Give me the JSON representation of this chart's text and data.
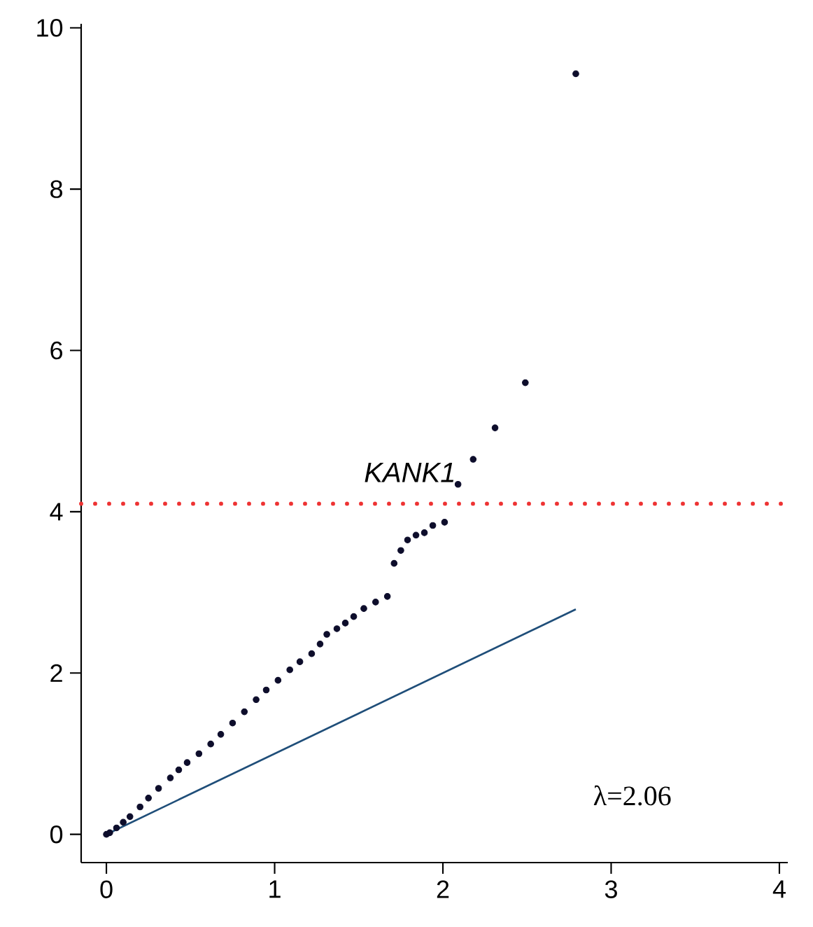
{
  "chart_data": {
    "type": "scatter",
    "xlim": [
      -0.15,
      4.05
    ],
    "ylim": [
      -0.35,
      10.05
    ],
    "xticks": [
      0,
      1,
      2,
      3,
      4
    ],
    "yticks": [
      0,
      2,
      4,
      6,
      8,
      10
    ],
    "grid": false,
    "series": [
      {
        "marker": "circle",
        "color": "#0d0d2b",
        "x": [
          0.0,
          0.02,
          0.06,
          0.1,
          0.14,
          0.2,
          0.25,
          0.31,
          0.38,
          0.43,
          0.48,
          0.55,
          0.62,
          0.68,
          0.75,
          0.82,
          0.89,
          0.95,
          1.02,
          1.09,
          1.15,
          1.22,
          1.27,
          1.31,
          1.37,
          1.42,
          1.47,
          1.53,
          1.6,
          1.67,
          1.71,
          1.75,
          1.79,
          1.84,
          1.89,
          1.94,
          2.01,
          2.09,
          2.18,
          2.31,
          2.49,
          2.79
        ],
        "values": [
          0.0,
          0.02,
          0.08,
          0.15,
          0.22,
          0.34,
          0.45,
          0.57,
          0.7,
          0.8,
          0.89,
          1.0,
          1.12,
          1.24,
          1.38,
          1.52,
          1.67,
          1.79,
          1.91,
          2.04,
          2.14,
          2.24,
          2.36,
          2.48,
          2.55,
          2.62,
          2.7,
          2.8,
          2.88,
          2.95,
          3.36,
          3.52,
          3.65,
          3.71,
          3.74,
          3.83,
          3.87,
          4.34,
          4.65,
          5.04,
          5.6,
          9.43
        ]
      },
      {
        "type": "line",
        "marker": "none",
        "color": "#1f4e79",
        "x": [
          0,
          2.79
        ],
        "values": [
          0,
          2.79
        ]
      }
    ],
    "ref_lines": [
      {
        "axis": "y",
        "value": 4.1,
        "color": "#ee3333",
        "line_style": "dotted"
      }
    ],
    "annotations": [
      {
        "text": "KANK1",
        "x": 2.09,
        "y": 4.34
      },
      "λ=2.06"
    ]
  }
}
